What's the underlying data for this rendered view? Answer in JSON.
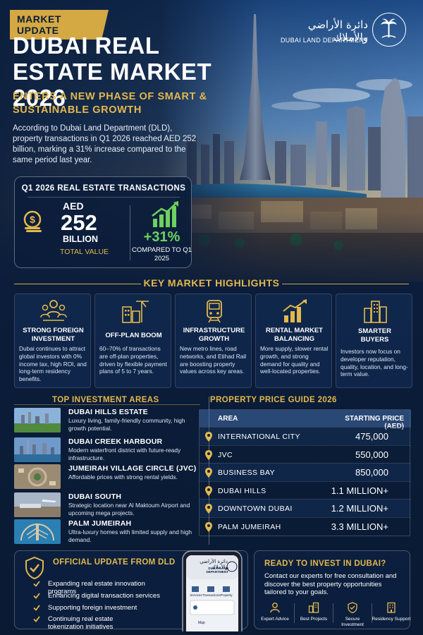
{
  "badge": "MARKET UPDATE",
  "title": "DUBAI REAL ESTATE MARKET 2026",
  "subtitle": "ENTERS A NEW PHASE OF SMART & SUSTAINABLE GROWTH",
  "intro": "According to Dubai Land Department (DLD), property transactions in Q1 2026 reached AED 252 billion, marking a 31% increase compared to the same period last year.",
  "logo": {
    "arabic": "دائرة الأراضي والأملاك",
    "english": "DUBAI LAND DEPARTMENT",
    "icon": "palm-emblem-icon"
  },
  "q1": {
    "title": "Q1 2026 REAL ESTATE TRANSACTIONS",
    "currency": "AED",
    "value": "252",
    "unit": "BILLION",
    "value_label": "TOTAL VALUE",
    "growth": "+31%",
    "growth_label": "COMPARED TO Q1 2025",
    "colors": {
      "growth": "#6cd25f",
      "accent": "#e3b84d"
    }
  },
  "highlights": {
    "title": "KEY MARKET HIGHLIGHTS",
    "items": [
      {
        "icon": "people-group-icon",
        "title": "STRONG FOREIGN INVESTMENT",
        "desc": "Dubai continues to attract global investors with 0% income tax, high ROI, and long-term residency benefits."
      },
      {
        "icon": "construction-crane-icon",
        "title": "OFF-PLAN BOOM",
        "desc": "60–70% of transactions are off-plan properties, driven by flexible payment plans of 5 to 7 years."
      },
      {
        "icon": "metro-train-icon",
        "title": "INFRASTRUCTURE GROWTH",
        "desc": "New metro lines, road networks, and Etihad Rail are boosting property values across key areas."
      },
      {
        "icon": "rising-bars-icon",
        "title": "RENTAL MARKET BALANCING",
        "desc": "More supply, slower rental growth, and strong demand for quality and well-located properties."
      },
      {
        "icon": "buildings-icon",
        "title": "SMARTER BUYERS",
        "desc": "Investors now focus on developer reputation, quality, location, and long-term value."
      }
    ]
  },
  "areas": {
    "title": "TOP INVESTMENT AREAS",
    "items": [
      {
        "name": "DUBAI HILLS ESTATE",
        "desc": "Luxury living, family-friendly community, high growth potential."
      },
      {
        "name": "DUBAI CREEK HARBOUR",
        "desc": "Modern waterfront district with future-ready infrastructure."
      },
      {
        "name": "JUMEIRAH VILLAGE CIRCLE (JVC)",
        "desc": "Affordable prices with strong rental yields."
      },
      {
        "name": "DUBAI SOUTH",
        "desc": "Strategic location near Al Maktoum Airport and upcoming mega projects."
      },
      {
        "name": "PALM JUMEIRAH",
        "desc": "Ultra-luxury homes with limited supply and high demand."
      }
    ]
  },
  "price_guide": {
    "title": "PROPERTY PRICE GUIDE 2026",
    "col_area": "AREA",
    "col_price": "STARTING PRICE (AED)",
    "rows": [
      {
        "area": "INTERNATIONAL CITY",
        "price": "475,000"
      },
      {
        "area": "JVC",
        "price": "550,000"
      },
      {
        "area": "BUSINESS BAY",
        "price": "850,000"
      },
      {
        "area": "DUBAI HILLS",
        "price": "1.1 MILLION+"
      },
      {
        "area": "DOWNTOWN DUBAI",
        "price": "1.2 MILLION+"
      },
      {
        "area": "PALM JUMEIRAH",
        "price": "3.3 MILLION+"
      }
    ]
  },
  "official": {
    "title": "OFFICIAL UPDATE FROM DLD",
    "items": [
      "Expanding real estate innovation programs",
      "Enhancing digital transaction services",
      "Supporting foreign investment",
      "Continuing real estate tokenization initiatives"
    ],
    "phone": {
      "header_ar": "دائرة الأراضي والأملاك",
      "header_en": "DUBAI LAND DEPARTMENT",
      "tabs": [
        "Services",
        "Transactions",
        "Property"
      ],
      "bottom": "Map"
    }
  },
  "cta": {
    "title": "READY TO INVEST IN DUBAI?",
    "text": "Contact our experts for free consultation and discover the best property opportunities tailored to your goals.",
    "features": [
      {
        "icon": "person-advice-icon",
        "label": "Expert Advice"
      },
      {
        "icon": "buildings-icon",
        "label": "Best Projects"
      },
      {
        "icon": "shield-check-icon",
        "label": "Secure Investment"
      },
      {
        "icon": "support-building-icon",
        "label": "Residency Support"
      }
    ]
  }
}
